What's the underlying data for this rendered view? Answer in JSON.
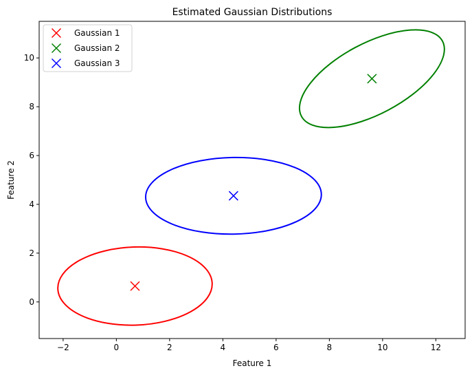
{
  "chart_data": {
    "type": "scatter",
    "title": "Estimated Gaussian Distributions",
    "xlabel": "Feature 1",
    "ylabel": "Feature 2",
    "xlim": [
      -2.9,
      13.1
    ],
    "ylim": [
      -1.5,
      11.5
    ],
    "xticks": [
      -2,
      0,
      2,
      4,
      6,
      8,
      10,
      12
    ],
    "yticks": [
      0,
      2,
      4,
      6,
      8,
      10
    ],
    "grid": false,
    "legend_position": "top-left",
    "series": [
      {
        "name": "Gaussian 1",
        "color": "#ff0000",
        "mean": [
          0.7,
          0.65
        ],
        "ellipse": {
          "center": [
            0.7,
            0.65
          ],
          "semi_x": 2.9,
          "semi_y": 1.6,
          "angle_deg": -2
        }
      },
      {
        "name": "Gaussian 2",
        "color": "#008000",
        "mean": [
          9.6,
          9.15
        ],
        "ellipse": {
          "center": [
            9.6,
            9.15
          ],
          "semi_x": 3.0,
          "semi_y": 1.45,
          "angle_deg": -28
        }
      },
      {
        "name": "Gaussian 3",
        "color": "#0000ff",
        "mean": [
          4.4,
          4.35
        ],
        "ellipse": {
          "center": [
            4.4,
            4.35
          ],
          "semi_x": 3.3,
          "semi_y": 1.57,
          "angle_deg": -1
        }
      }
    ]
  }
}
